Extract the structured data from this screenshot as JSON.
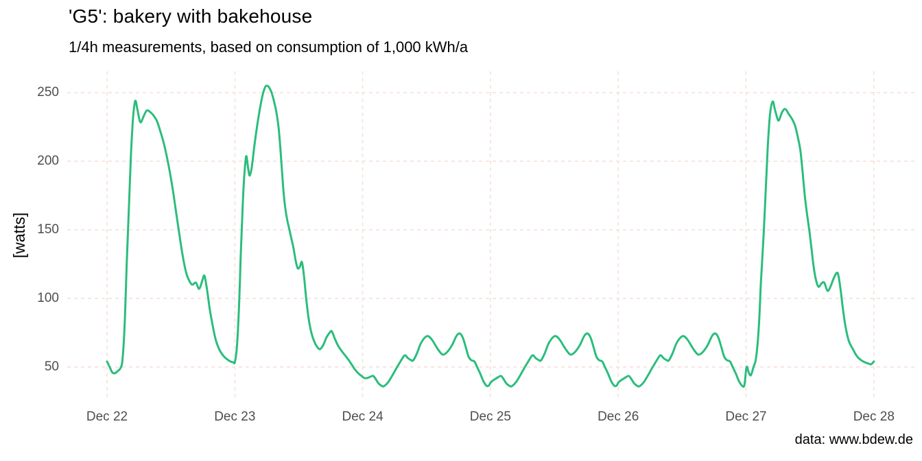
{
  "title": "'G5': bakery with bakehouse",
  "subtitle": "1/4h measurements, based on consumption of 1,000 kWh/a",
  "caption": "data: www.bdew.de",
  "y_axis": {
    "label": "[watts]",
    "ticks": [
      "50",
      "100",
      "150",
      "200",
      "250"
    ]
  },
  "x_axis": {
    "ticks": [
      "Dec 22",
      "Dec 23",
      "Dec 24",
      "Dec 25",
      "Dec 26",
      "Dec 27",
      "Dec 28"
    ]
  },
  "colors": {
    "line": "#2abd7c",
    "grid": "#f6e2dc",
    "axis_text": "#4d4d4d",
    "text": "#000000",
    "background": "#ffffff"
  },
  "chart_data": {
    "type": "line",
    "title": "'G5': bakery with bakehouse",
    "subtitle": "1/4h measurements, based on consumption of 1,000 kWh/a",
    "caption": "data: www.bdew.de",
    "xlabel": "",
    "ylabel": "[watts]",
    "x_unit": "hours since Dec 22 00:00",
    "x_tick_hours": [
      0,
      24,
      48,
      72,
      96,
      120,
      144
    ],
    "x_tick_labels": [
      "Dec 22",
      "Dec 23",
      "Dec 24",
      "Dec 25",
      "Dec 26",
      "Dec 27",
      "Dec 28"
    ],
    "y_ticks": [
      50,
      100,
      150,
      200,
      250
    ],
    "ylim": [
      26,
      265
    ],
    "xlim_hours": [
      0,
      152
    ],
    "grid": "dashed major gridlines, no axis lines, legend none",
    "points": [
      [
        0,
        54
      ],
      [
        0.5,
        50
      ],
      [
        1,
        46
      ],
      [
        1.5,
        45.5
      ],
      [
        2,
        47
      ],
      [
        2.5,
        49
      ],
      [
        2.9,
        55
      ],
      [
        3.3,
        80
      ],
      [
        3.7,
        125
      ],
      [
        4.1,
        165
      ],
      [
        4.5,
        205
      ],
      [
        4.9,
        232
      ],
      [
        5.3,
        244
      ],
      [
        5.7,
        238
      ],
      [
        6.1,
        230
      ],
      [
        6.4,
        228.5
      ],
      [
        6.9,
        233
      ],
      [
        7.5,
        237
      ],
      [
        8.2,
        235.5
      ],
      [
        8.8,
        233
      ],
      [
        9.4,
        229
      ],
      [
        10,
        222
      ],
      [
        10.6,
        214
      ],
      [
        11.2,
        204
      ],
      [
        11.8,
        192
      ],
      [
        12.4,
        178
      ],
      [
        13,
        162
      ],
      [
        13.5,
        149
      ],
      [
        14,
        136
      ],
      [
        14.5,
        125
      ],
      [
        15,
        117
      ],
      [
        15.5,
        112.5
      ],
      [
        16,
        110
      ],
      [
        16.7,
        111.5
      ],
      [
        17.3,
        107
      ],
      [
        17.9,
        113
      ],
      [
        18.3,
        116.5
      ],
      [
        18.8,
        106
      ],
      [
        19.3,
        92
      ],
      [
        19.9,
        79
      ],
      [
        20.4,
        70
      ],
      [
        21,
        63.5
      ],
      [
        21.5,
        60
      ],
      [
        22,
        57.5
      ],
      [
        22.6,
        55.5
      ],
      [
        23.2,
        54
      ],
      [
        23.7,
        53.5
      ],
      [
        24,
        53.5
      ],
      [
        24.4,
        65
      ],
      [
        24.8,
        95
      ],
      [
        25.1,
        130
      ],
      [
        25.4,
        160
      ],
      [
        25.7,
        185
      ],
      [
        26,
        200
      ],
      [
        26.2,
        203.5
      ],
      [
        26.5,
        195
      ],
      [
        26.8,
        189.5
      ],
      [
        27.2,
        196
      ],
      [
        27.7,
        212
      ],
      [
        28.2,
        226
      ],
      [
        28.7,
        238
      ],
      [
        29.2,
        248
      ],
      [
        29.7,
        254
      ],
      [
        30,
        255
      ],
      [
        30.4,
        254
      ],
      [
        30.9,
        250
      ],
      [
        31.4,
        243
      ],
      [
        31.8,
        236
      ],
      [
        32.2,
        225
      ],
      [
        32.5,
        212
      ],
      [
        32.8,
        196
      ],
      [
        33.1,
        180
      ],
      [
        33.4,
        168
      ],
      [
        33.8,
        158
      ],
      [
        34.2,
        151
      ],
      [
        34.6,
        144
      ],
      [
        35,
        137
      ],
      [
        35.4,
        128
      ],
      [
        35.8,
        122
      ],
      [
        36.2,
        123
      ],
      [
        36.6,
        126.5
      ],
      [
        37,
        116
      ],
      [
        37.4,
        100
      ],
      [
        37.8,
        87
      ],
      [
        38.2,
        78
      ],
      [
        38.6,
        72
      ],
      [
        39.1,
        67
      ],
      [
        39.6,
        64
      ],
      [
        40,
        63
      ],
      [
        40.6,
        66
      ],
      [
        41.2,
        71.5
      ],
      [
        41.8,
        75
      ],
      [
        42.2,
        76
      ],
      [
        42.8,
        70.5
      ],
      [
        43.4,
        65.5
      ],
      [
        44.1,
        61.5
      ],
      [
        44.8,
        58
      ],
      [
        45.4,
        55
      ],
      [
        46,
        51.5
      ],
      [
        46.6,
        48
      ],
      [
        47.3,
        45
      ],
      [
        47.8,
        43.5
      ],
      [
        48.3,
        42
      ],
      [
        48.9,
        42
      ],
      [
        49.5,
        43
      ],
      [
        50,
        43.5
      ],
      [
        50.5,
        41
      ],
      [
        51,
        38
      ],
      [
        51.6,
        36.2
      ],
      [
        52,
        36
      ],
      [
        52.8,
        39
      ],
      [
        53.6,
        44
      ],
      [
        54.4,
        49.5
      ],
      [
        55.1,
        54
      ],
      [
        55.9,
        58.5
      ],
      [
        56.5,
        56.5
      ],
      [
        57.1,
        55
      ],
      [
        57.5,
        54.8
      ],
      [
        58.2,
        60
      ],
      [
        58.9,
        67
      ],
      [
        59.7,
        71.5
      ],
      [
        60.3,
        72.5
      ],
      [
        61,
        70
      ],
      [
        61.8,
        65
      ],
      [
        62.5,
        61
      ],
      [
        63.1,
        59
      ],
      [
        63.9,
        61
      ],
      [
        64.8,
        66
      ],
      [
        65.6,
        72.5
      ],
      [
        66.2,
        74.5
      ],
      [
        66.8,
        71.5
      ],
      [
        67.4,
        64
      ],
      [
        67.9,
        57.5
      ],
      [
        68.4,
        55
      ],
      [
        69,
        54
      ],
      [
        69.5,
        50
      ],
      [
        70.1,
        45
      ],
      [
        70.7,
        39.5
      ],
      [
        71.3,
        36.2
      ],
      [
        71.7,
        36.5
      ],
      [
        72,
        38.5
      ],
      [
        72.4,
        40
      ],
      [
        72.8,
        41
      ],
      [
        73.4,
        42.5
      ],
      [
        74,
        43.5
      ],
      [
        74.5,
        41
      ],
      [
        75,
        38
      ],
      [
        75.6,
        36.2
      ],
      [
        76,
        36
      ],
      [
        76.8,
        39
      ],
      [
        77.6,
        44
      ],
      [
        78.4,
        49.5
      ],
      [
        79.1,
        54
      ],
      [
        79.9,
        58.5
      ],
      [
        80.5,
        56.5
      ],
      [
        81.1,
        55
      ],
      [
        81.5,
        54.8
      ],
      [
        82.2,
        60
      ],
      [
        82.9,
        67
      ],
      [
        83.7,
        71.5
      ],
      [
        84.3,
        72.5
      ],
      [
        85,
        70
      ],
      [
        85.8,
        65
      ],
      [
        86.5,
        61
      ],
      [
        87.1,
        59
      ],
      [
        87.9,
        61
      ],
      [
        88.8,
        66
      ],
      [
        89.6,
        72.5
      ],
      [
        90.2,
        74.5
      ],
      [
        90.8,
        71.5
      ],
      [
        91.4,
        64
      ],
      [
        91.9,
        57.5
      ],
      [
        92.4,
        55
      ],
      [
        93,
        54
      ],
      [
        93.5,
        50
      ],
      [
        94.1,
        45
      ],
      [
        94.7,
        39.5
      ],
      [
        95.3,
        36.2
      ],
      [
        95.7,
        36.5
      ],
      [
        96,
        38.5
      ],
      [
        96.4,
        40
      ],
      [
        96.8,
        41
      ],
      [
        97.4,
        42.5
      ],
      [
        98,
        43.5
      ],
      [
        98.5,
        41
      ],
      [
        99,
        38
      ],
      [
        99.6,
        36.2
      ],
      [
        100,
        36
      ],
      [
        100.8,
        39
      ],
      [
        101.6,
        44
      ],
      [
        102.4,
        49.5
      ],
      [
        103.1,
        54
      ],
      [
        103.9,
        58.5
      ],
      [
        104.5,
        56.5
      ],
      [
        105.1,
        55
      ],
      [
        105.5,
        54.8
      ],
      [
        106.2,
        60
      ],
      [
        106.9,
        67
      ],
      [
        107.7,
        71.5
      ],
      [
        108.3,
        72.5
      ],
      [
        109,
        70
      ],
      [
        109.8,
        65
      ],
      [
        110.5,
        61
      ],
      [
        111.1,
        59
      ],
      [
        111.9,
        61
      ],
      [
        112.8,
        66
      ],
      [
        113.6,
        72.5
      ],
      [
        114.2,
        74.5
      ],
      [
        114.8,
        71.5
      ],
      [
        115.4,
        64
      ],
      [
        115.9,
        57.5
      ],
      [
        116.4,
        55
      ],
      [
        117,
        54
      ],
      [
        117.5,
        50
      ],
      [
        118.1,
        45
      ],
      [
        118.7,
        39.5
      ],
      [
        119.3,
        36.2
      ],
      [
        119.7,
        37
      ],
      [
        120.1,
        50
      ],
      [
        120.5,
        46
      ],
      [
        120.9,
        44
      ],
      [
        121.4,
        50
      ],
      [
        121.9,
        57
      ],
      [
        122.4,
        79
      ],
      [
        122.8,
        112
      ],
      [
        123.3,
        146
      ],
      [
        123.7,
        179
      ],
      [
        124.1,
        212
      ],
      [
        124.5,
        234
      ],
      [
        125,
        243.5
      ],
      [
        125.4,
        238
      ],
      [
        125.9,
        231
      ],
      [
        126.2,
        230
      ],
      [
        126.8,
        236
      ],
      [
        127.4,
        238
      ],
      [
        128,
        234.5
      ],
      [
        128.6,
        231
      ],
      [
        129.2,
        226
      ],
      [
        129.7,
        218
      ],
      [
        130.2,
        208
      ],
      [
        130.6,
        193
      ],
      [
        131,
        176
      ],
      [
        131.4,
        163
      ],
      [
        131.9,
        149
      ],
      [
        132.3,
        136
      ],
      [
        132.7,
        123
      ],
      [
        133.1,
        114
      ],
      [
        133.6,
        108.5
      ],
      [
        134.2,
        111
      ],
      [
        134.7,
        111.5
      ],
      [
        135.3,
        105.5
      ],
      [
        135.9,
        109
      ],
      [
        136.5,
        115
      ],
      [
        137.2,
        118.5
      ],
      [
        137.7,
        108
      ],
      [
        138.2,
        92
      ],
      [
        138.7,
        79
      ],
      [
        139.3,
        69
      ],
      [
        140,
        63.5
      ],
      [
        140.8,
        58
      ],
      [
        141.6,
        55
      ],
      [
        142.3,
        53.5
      ],
      [
        143,
        52.5
      ],
      [
        143.5,
        52
      ],
      [
        144,
        54
      ]
    ]
  }
}
